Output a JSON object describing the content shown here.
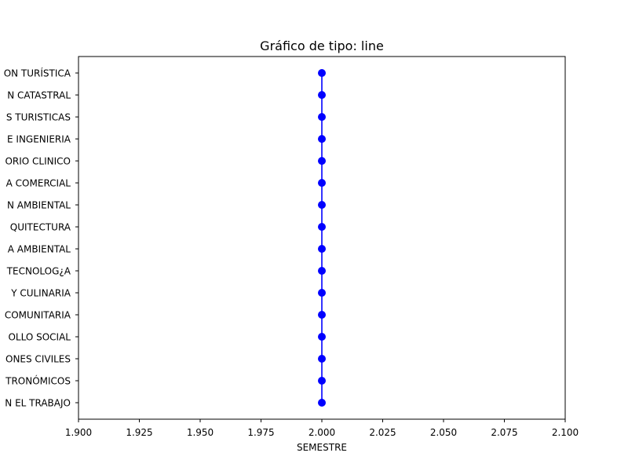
{
  "chart_data": {
    "type": "line",
    "title": "Gráfico de tipo: line",
    "xlabel": "SEMESTRE",
    "ylabel": "",
    "xlim": [
      1.9,
      2.1
    ],
    "xticks": [
      "1.900",
      "1.925",
      "1.950",
      "1.975",
      "2.000",
      "2.025",
      "2.050",
      "2.075",
      "2.100"
    ],
    "xtick_values": [
      1.9,
      1.925,
      1.95,
      1.975,
      2.0,
      2.025,
      2.05,
      2.075,
      2.1
    ],
    "categories": [
      "N EL TRABAJO",
      "TRONÓMICOS",
      "ONES CIVILES",
      "OLLO SOCIAL",
      "COMUNITARIA",
      "Y CULINARIA",
      "TECNOLOG¿A",
      "A AMBIENTAL",
      "QUITECTURA",
      "N AMBIENTAL",
      "A COMERCIAL",
      "ORIO CLINICO",
      "E INGENIERIA",
      "S TURISTICAS",
      "N CATASTRAL",
      "ON TURÍSTICA"
    ],
    "series": [
      {
        "x": [
          2,
          2,
          2,
          2,
          2,
          2,
          2,
          2,
          2,
          2,
          2,
          2,
          2,
          2,
          2,
          2
        ],
        "color": "#0000ff",
        "marker": "circle"
      }
    ],
    "grid": false,
    "legend": "none"
  }
}
